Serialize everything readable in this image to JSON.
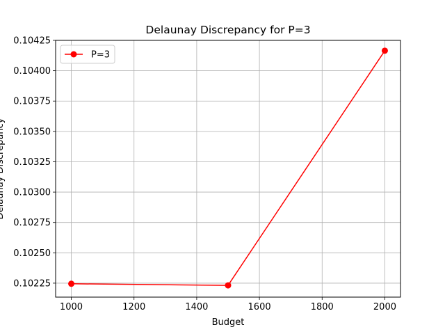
{
  "chart_data": {
    "type": "line",
    "title": "Delaunay Discrepancy for P=3",
    "xlabel": "Budget",
    "ylabel": "Delaunay Discrepancy",
    "xlim": [
      950,
      2050
    ],
    "ylim": [
      0.102135,
      0.10425
    ],
    "xticks": [
      1000,
      1200,
      1400,
      1600,
      1800,
      2000
    ],
    "xtick_labels": [
      "1000",
      "1200",
      "1400",
      "1600",
      "1800",
      "2000"
    ],
    "yticks": [
      0.10225,
      0.1025,
      0.10275,
      0.103,
      0.10325,
      0.1035,
      0.10375,
      0.104,
      0.10425
    ],
    "ytick_labels": [
      "0.10225",
      "0.10250",
      "0.10275",
      "0.10300",
      "0.10325",
      "0.10350",
      "0.10375",
      "0.10400",
      "0.10425"
    ],
    "grid": true,
    "legend_position": "top-left",
    "series": [
      {
        "name": "P=3",
        "color": "#ff0000",
        "marker": "circle",
        "x": [
          1000,
          1500,
          2000
        ],
        "y": [
          0.102245,
          0.102232,
          0.104165
        ]
      }
    ]
  }
}
